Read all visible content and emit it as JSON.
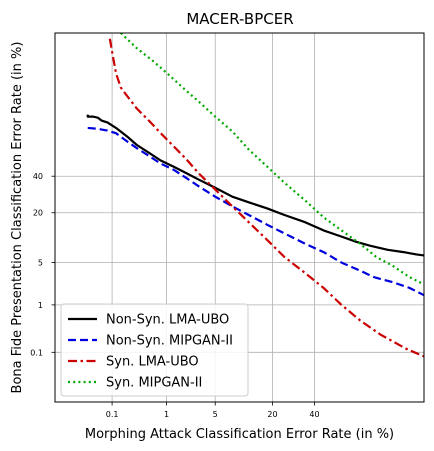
{
  "chart_data": {
    "type": "line",
    "title": "MACER-BPCER",
    "xlabel": "Morphing Attack Classification Error Rate (in %)",
    "ylabel": "Bona Fide Presentation Classification Error Rate (in %)",
    "scale": "probit",
    "xlim": [
      0.005,
      90
    ],
    "ylim": [
      0.005,
      98
    ],
    "x_ticks": [
      0.1,
      1,
      5,
      20,
      40
    ],
    "y_ticks": [
      0.1,
      1,
      5,
      20,
      40
    ],
    "grid": true,
    "legend_position": "bottom-left",
    "series": [
      {
        "name": "Non-Syn. LMA-UBO",
        "color": "#000000",
        "style": "solid",
        "points": [
          [
            0.03,
            77
          ],
          [
            0.03,
            76
          ],
          [
            0.04,
            76
          ],
          [
            0.05,
            75.5
          ],
          [
            0.06,
            74
          ],
          [
            0.08,
            73
          ],
          [
            0.12,
            70
          ],
          [
            0.2,
            65
          ],
          [
            0.3,
            60
          ],
          [
            0.5,
            55
          ],
          [
            0.8,
            50
          ],
          [
            1.3,
            46
          ],
          [
            2,
            42
          ],
          [
            3,
            38
          ],
          [
            5,
            33
          ],
          [
            8,
            28
          ],
          [
            12,
            25
          ],
          [
            18,
            22
          ],
          [
            25,
            19
          ],
          [
            35,
            16
          ],
          [
            45,
            13
          ],
          [
            55,
            11
          ],
          [
            63,
            9.5
          ],
          [
            70,
            8.5
          ],
          [
            78,
            7.5
          ],
          [
            84,
            7
          ],
          [
            88,
            6.5
          ],
          [
            90,
            6.3
          ]
        ]
      },
      {
        "name": "Non-Syn. MIPGAN-II",
        "color": "#0000dd",
        "style": "dashed",
        "points": [
          [
            0.03,
            70
          ],
          [
            0.05,
            69.5
          ],
          [
            0.08,
            68.5
          ],
          [
            0.12,
            67
          ],
          [
            0.2,
            62
          ],
          [
            0.3,
            58
          ],
          [
            0.5,
            53
          ],
          [
            0.8,
            48
          ],
          [
            1.3,
            44
          ],
          [
            2,
            39
          ],
          [
            3,
            34
          ],
          [
            5,
            28
          ],
          [
            8,
            23
          ],
          [
            12,
            19
          ],
          [
            18,
            15
          ],
          [
            25,
            12
          ],
          [
            35,
            9
          ],
          [
            45,
            7
          ],
          [
            55,
            5
          ],
          [
            65,
            3.8
          ],
          [
            72,
            3
          ],
          [
            80,
            2.5
          ],
          [
            86,
            2
          ],
          [
            90,
            1.5
          ]
        ]
      },
      {
        "name": "Syn. LMA-UBO",
        "color": "#cc0000",
        "style": "dashdot",
        "points": [
          [
            0.09,
            97.5
          ],
          [
            0.1,
            96
          ],
          [
            0.12,
            92
          ],
          [
            0.15,
            88
          ],
          [
            0.2,
            85
          ],
          [
            0.3,
            80
          ],
          [
            0.5,
            74
          ],
          [
            0.8,
            67
          ],
          [
            1.3,
            59
          ],
          [
            2,
            51
          ],
          [
            3,
            42
          ],
          [
            5,
            32
          ],
          [
            8,
            23
          ],
          [
            12,
            16
          ],
          [
            18,
            10
          ],
          [
            25,
            6
          ],
          [
            35,
            3.5
          ],
          [
            45,
            2
          ],
          [
            55,
            1
          ],
          [
            65,
            0.5
          ],
          [
            75,
            0.25
          ],
          [
            85,
            0.12
          ],
          [
            90,
            0.08
          ]
        ]
      },
      {
        "name": "Syn. MIPGAN-II",
        "color": "#00aa00",
        "style": "dotted",
        "points": [
          [
            0.15,
            98
          ],
          [
            0.3,
            96.5
          ],
          [
            0.6,
            94.5
          ],
          [
            1.2,
            91
          ],
          [
            2,
            87
          ],
          [
            3,
            83
          ],
          [
            5,
            76
          ],
          [
            8,
            68
          ],
          [
            12,
            57
          ],
          [
            18,
            46
          ],
          [
            25,
            36
          ],
          [
            35,
            26
          ],
          [
            45,
            18
          ],
          [
            55,
            13
          ],
          [
            65,
            9
          ],
          [
            73,
            6
          ],
          [
            80,
            4.5
          ],
          [
            86,
            3
          ],
          [
            90,
            2.3
          ]
        ]
      }
    ]
  }
}
